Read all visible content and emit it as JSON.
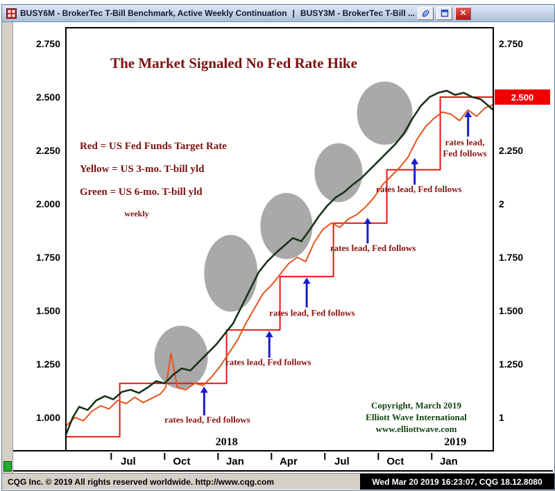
{
  "titlebar": {
    "title_left": "BUSY6M - BrokerTec T-Bill Benchmark, Active Weekly Continuation",
    "separator": "|",
    "title_right": "BUSY3M - BrokerTec T-Bill ...",
    "buttons": [
      {
        "name": "link",
        "icon": "paperclip-icon"
      },
      {
        "name": "chart-window",
        "icon": "window-icon"
      },
      {
        "name": "close",
        "icon": "close-x-icon",
        "glyph": "✕"
      }
    ]
  },
  "statusbar": {
    "left_text": "CQG Inc. © 2019 All rights reserved worldwide. http://www.cqg.com",
    "right_text": "Wed Mar 20 2019 16:23:07, CQG 18.12.8080"
  },
  "chart_data": {
    "type": "line",
    "title": "The Market Signaled No Fed Rate Hike",
    "legend": [
      "Red = US Fed Funds Target Rate",
      "Yellow = US 3-mo. T-bill yld",
      "Green = US 6-mo. T-bill yld"
    ],
    "legend_note": "weekly",
    "axis_range": {
      "t": [
        2017.208,
        2019.208
      ],
      "v": [
        0.8442,
        2.8247
      ]
    },
    "x_ticks": [
      {
        "t": 2017.5,
        "label": "Jul"
      },
      {
        "t": 2017.75,
        "label": "Oct"
      },
      {
        "t": 2018.0,
        "label": "Jan"
      },
      {
        "t": 2018.25,
        "label": "Apr"
      },
      {
        "t": 2018.5,
        "label": "Jul"
      },
      {
        "t": 2018.75,
        "label": "Oct"
      },
      {
        "t": 2019.0,
        "label": "Jan"
      }
    ],
    "year_labels": [
      {
        "t": 2017.96,
        "label": "2018"
      },
      {
        "t": 2019.03,
        "label": "2019"
      }
    ],
    "y_ticks_left": [
      {
        "v": 2.75,
        "label": "2.750"
      },
      {
        "v": 2.5,
        "label": "2.500"
      },
      {
        "v": 2.25,
        "label": "2.250"
      },
      {
        "v": 2.0,
        "label": "2.000"
      },
      {
        "v": 1.75,
        "label": "1.750"
      },
      {
        "v": 1.5,
        "label": "1.500"
      },
      {
        "v": 1.25,
        "label": "1.250"
      },
      {
        "v": 1.0,
        "label": "1.000"
      }
    ],
    "y_ticks_right": [
      {
        "v": 2.75,
        "label": "2.750"
      },
      {
        "v": 2.25,
        "label": "2.250"
      },
      {
        "v": 2.0,
        "label": "2"
      },
      {
        "v": 1.75,
        "label": "1.750"
      },
      {
        "v": 1.5,
        "label": "1.500"
      },
      {
        "v": 1.25,
        "label": "1.250"
      },
      {
        "v": 1.0,
        "label": "1"
      }
    ],
    "price_tag": {
      "value": 2.5,
      "label": "2.500"
    },
    "colors": {
      "fed_red": "#e41414",
      "tbill3_orange": "#e8531a",
      "tbill6_green": "#173317",
      "annotation_red": "#8b1212",
      "arrow_blue": "#1a1acc",
      "copyright_green": "#134513",
      "ellipse_gray": "#a9a9a9",
      "tag_red": "#ee0000"
    },
    "series": [
      {
        "id": "fed-funds",
        "name": "US Fed Funds Target Rate",
        "color": "#e41414",
        "width": 2,
        "points": [
          [
            2017.208,
            0.91
          ],
          [
            2017.46,
            0.91
          ],
          [
            2017.46,
            1.16
          ],
          [
            2017.96,
            1.16
          ],
          [
            2017.96,
            1.41
          ],
          [
            2018.21,
            1.41
          ],
          [
            2018.21,
            1.66
          ],
          [
            2018.46,
            1.66
          ],
          [
            2018.46,
            1.91
          ],
          [
            2018.71,
            1.91
          ],
          [
            2018.71,
            2.16
          ],
          [
            2018.96,
            2.16
          ],
          [
            2018.96,
            2.5
          ],
          [
            2019.208,
            2.5
          ]
        ]
      },
      {
        "id": "tbill-3mo",
        "name": "US 3-mo. T-bill yld",
        "color": "#e8531a",
        "width": 2,
        "points": [
          [
            2017.208,
            0.96
          ],
          [
            2017.25,
            1.0
          ],
          [
            2017.29,
            0.985
          ],
          [
            2017.33,
            1.03
          ],
          [
            2017.37,
            1.055
          ],
          [
            2017.41,
            1.04
          ],
          [
            2017.45,
            1.08
          ],
          [
            2017.49,
            1.065
          ],
          [
            2017.53,
            1.095
          ],
          [
            2017.57,
            1.07
          ],
          [
            2017.61,
            1.09
          ],
          [
            2017.65,
            1.11
          ],
          [
            2017.675,
            1.14
          ],
          [
            2017.7,
            1.3
          ],
          [
            2017.73,
            1.14
          ],
          [
            2017.77,
            1.13
          ],
          [
            2017.81,
            1.16
          ],
          [
            2017.85,
            1.15
          ],
          [
            2017.89,
            1.19
          ],
          [
            2017.93,
            1.24
          ],
          [
            2017.97,
            1.3
          ],
          [
            2018.01,
            1.36
          ],
          [
            2018.05,
            1.44
          ],
          [
            2018.09,
            1.51
          ],
          [
            2018.13,
            1.58
          ],
          [
            2018.17,
            1.62
          ],
          [
            2018.21,
            1.67
          ],
          [
            2018.25,
            1.72
          ],
          [
            2018.29,
            1.75
          ],
          [
            2018.33,
            1.73
          ],
          [
            2018.37,
            1.82
          ],
          [
            2018.41,
            1.88
          ],
          [
            2018.45,
            1.91
          ],
          [
            2018.49,
            1.89
          ],
          [
            2018.53,
            1.93
          ],
          [
            2018.57,
            1.95
          ],
          [
            2018.61,
            1.985
          ],
          [
            2018.65,
            2.03
          ],
          [
            2018.69,
            2.09
          ],
          [
            2018.73,
            2.13
          ],
          [
            2018.77,
            2.17
          ],
          [
            2018.81,
            2.22
          ],
          [
            2018.85,
            2.3
          ],
          [
            2018.89,
            2.36
          ],
          [
            2018.93,
            2.4
          ],
          [
            2018.97,
            2.43
          ],
          [
            2019.01,
            2.42
          ],
          [
            2019.05,
            2.39
          ],
          [
            2019.09,
            2.44
          ],
          [
            2019.13,
            2.41
          ],
          [
            2019.17,
            2.45
          ],
          [
            2019.208,
            2.465
          ]
        ]
      },
      {
        "id": "tbill-6mo",
        "name": "US 6-mo. T-bill yld",
        "color": "#173317",
        "width": 2.6,
        "points": [
          [
            2017.208,
            0.92
          ],
          [
            2017.24,
            1.0
          ],
          [
            2017.27,
            1.05
          ],
          [
            2017.31,
            1.035
          ],
          [
            2017.35,
            1.08
          ],
          [
            2017.39,
            1.1
          ],
          [
            2017.43,
            1.085
          ],
          [
            2017.47,
            1.12
          ],
          [
            2017.51,
            1.13
          ],
          [
            2017.55,
            1.115
          ],
          [
            2017.59,
            1.14
          ],
          [
            2017.63,
            1.17
          ],
          [
            2017.67,
            1.16
          ],
          [
            2017.71,
            1.2
          ],
          [
            2017.75,
            1.23
          ],
          [
            2017.79,
            1.22
          ],
          [
            2017.83,
            1.26
          ],
          [
            2017.87,
            1.3
          ],
          [
            2017.91,
            1.34
          ],
          [
            2017.95,
            1.39
          ],
          [
            2017.99,
            1.44
          ],
          [
            2018.03,
            1.52
          ],
          [
            2018.07,
            1.6
          ],
          [
            2018.11,
            1.68
          ],
          [
            2018.15,
            1.73
          ],
          [
            2018.19,
            1.77
          ],
          [
            2018.23,
            1.805
          ],
          [
            2018.27,
            1.84
          ],
          [
            2018.31,
            1.825
          ],
          [
            2018.35,
            1.88
          ],
          [
            2018.39,
            1.94
          ],
          [
            2018.43,
            1.99
          ],
          [
            2018.47,
            2.03
          ],
          [
            2018.51,
            2.055
          ],
          [
            2018.55,
            2.09
          ],
          [
            2018.59,
            2.12
          ],
          [
            2018.63,
            2.16
          ],
          [
            2018.67,
            2.2
          ],
          [
            2018.71,
            2.24
          ],
          [
            2018.75,
            2.28
          ],
          [
            2018.79,
            2.33
          ],
          [
            2018.83,
            2.4
          ],
          [
            2018.87,
            2.46
          ],
          [
            2018.91,
            2.5
          ],
          [
            2018.95,
            2.52
          ],
          [
            2018.99,
            2.53
          ],
          [
            2019.03,
            2.51
          ],
          [
            2019.07,
            2.52
          ],
          [
            2019.11,
            2.5
          ],
          [
            2019.15,
            2.49
          ],
          [
            2019.19,
            2.455
          ],
          [
            2019.208,
            2.44
          ]
        ]
      }
    ],
    "ellipses": [
      {
        "t": 2017.747,
        "v": 1.282,
        "rt": 0.125,
        "rv": 0.148
      },
      {
        "t": 2017.98,
        "v": 1.675,
        "rt": 0.125,
        "rv": 0.18
      },
      {
        "t": 2018.24,
        "v": 1.896,
        "rt": 0.122,
        "rv": 0.155
      },
      {
        "t": 2018.484,
        "v": 2.146,
        "rt": 0.112,
        "rv": 0.138
      },
      {
        "t": 2018.7,
        "v": 2.425,
        "rt": 0.13,
        "rv": 0.148
      }
    ],
    "annotations": [
      {
        "lines": [
          "rates lead, Fed follows"
        ],
        "text_t": 2017.87,
        "text_v": 0.975,
        "arrow_t": 2017.855,
        "arrow_from_v": 1.01,
        "arrow_tip_v": 1.145
      },
      {
        "lines": [
          "rates lead, Fed follows"
        ],
        "text_t": 2018.155,
        "text_v": 1.245,
        "arrow_t": 2018.16,
        "arrow_from_v": 1.28,
        "arrow_tip_v": 1.405
      },
      {
        "lines": [
          "rates lead, Fed follows"
        ],
        "text_t": 2018.36,
        "text_v": 1.475,
        "arrow_t": 2018.335,
        "arrow_from_v": 1.515,
        "arrow_tip_v": 1.655
      },
      {
        "lines": [
          "rates lead, Fed follows"
        ],
        "text_t": 2018.645,
        "text_v": 1.78,
        "arrow_t": 2018.62,
        "arrow_from_v": 1.815,
        "arrow_tip_v": 1.935
      },
      {
        "lines": [
          "rates lead, Fed follows"
        ],
        "text_t": 2018.86,
        "text_v": 2.055,
        "arrow_t": 2018.84,
        "arrow_from_v": 2.09,
        "arrow_tip_v": 2.215
      },
      {
        "lines": [
          "rates lead,",
          "Fed follows"
        ],
        "text_t": 2019.075,
        "text_v": 2.275,
        "arrow_t": 2019.09,
        "arrow_from_v": 2.315,
        "arrow_tip_v": 2.435
      }
    ],
    "copyright": [
      "Copyright, March 2019",
      "Elliott Wave International",
      "www.elliottwave.com"
    ]
  }
}
